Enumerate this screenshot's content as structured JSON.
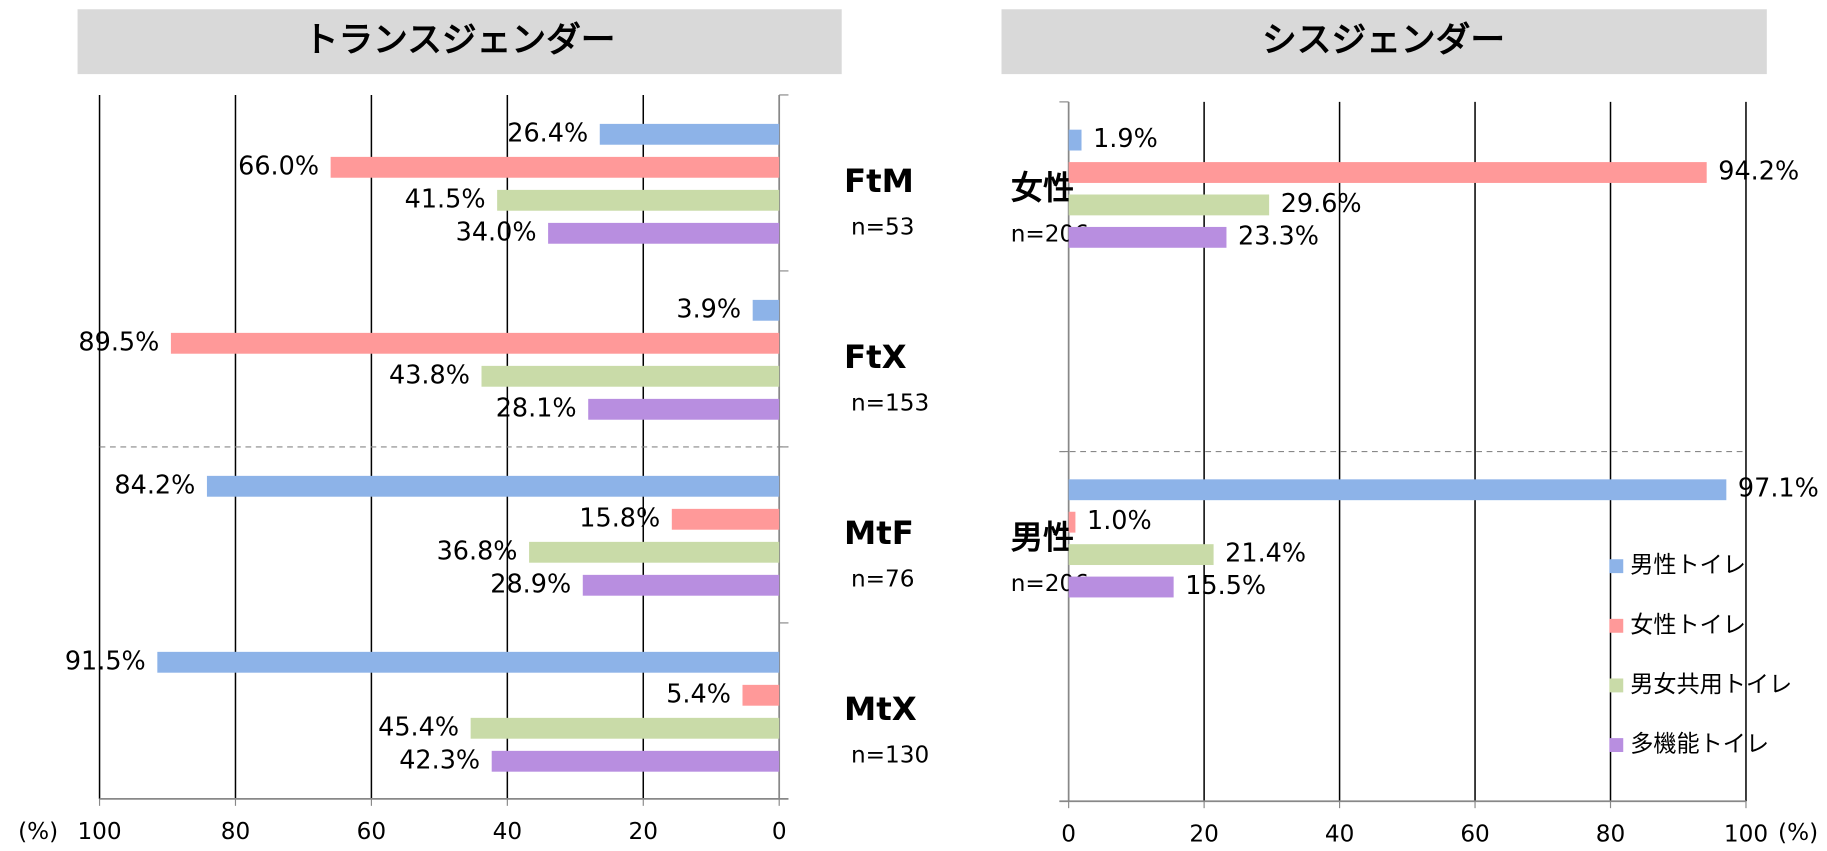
{
  "chart_data": [
    {
      "type": "bar",
      "orientation": "horizontal",
      "title": "トランスジェンダー",
      "categories": [
        "FtM",
        "FtX",
        "MtF",
        "MtX"
      ],
      "category_notes": [
        "n=53",
        "n=153",
        "n=76",
        "n=130"
      ],
      "series": [
        {
          "name": "男性トイレ",
          "color": "#8db3e8",
          "values": [
            26.4,
            3.9,
            84.2,
            91.5
          ],
          "value_labels": [
            "26.4%",
            "3.9%",
            "84.2%",
            "91.5%"
          ]
        },
        {
          "name": "女性トイレ",
          "color": "#ff9999",
          "values": [
            66.0,
            89.5,
            15.8,
            5.4
          ],
          "value_labels": [
            "66.0%",
            "89.5%",
            "15.8%",
            "5.4%"
          ]
        },
        {
          "name": "男女共用トイレ",
          "color": "#c9dba8",
          "values": [
            41.5,
            43.8,
            36.8,
            45.4
          ],
          "value_labels": [
            "41.5%",
            "43.8%",
            "36.8%",
            "45.4%"
          ]
        },
        {
          "name": "多機能トイレ",
          "color": "#b88ee0",
          "values": [
            34.0,
            28.1,
            28.9,
            42.3
          ],
          "value_labels": [
            "34.0%",
            "28.1%",
            "28.9%",
            "42.3%"
          ]
        }
      ],
      "xlabel": "(%)",
      "xlim": [
        100,
        0
      ],
      "xticks": [
        100,
        80,
        60,
        40,
        20,
        0
      ],
      "grid": true
    },
    {
      "type": "bar",
      "orientation": "horizontal",
      "title": "シスジェンダー",
      "categories": [
        "女性",
        "男性"
      ],
      "category_notes": [
        "n=206",
        "n=206"
      ],
      "series": [
        {
          "name": "男性トイレ",
          "color": "#8db3e8",
          "values": [
            1.9,
            97.1
          ],
          "value_labels": [
            "1.9%",
            "97.1%"
          ]
        },
        {
          "name": "女性トイレ",
          "color": "#ff9999",
          "values": [
            94.2,
            1.0
          ],
          "value_labels": [
            "94.2%",
            "1.0%"
          ]
        },
        {
          "name": "男女共用トイレ",
          "color": "#c9dba8",
          "values": [
            29.6,
            21.4
          ],
          "value_labels": [
            "29.6%",
            "21.4%"
          ]
        },
        {
          "name": "多機能トイレ",
          "color": "#b88ee0",
          "values": [
            23.3,
            15.5
          ],
          "value_labels": [
            "23.3%",
            "15.5%"
          ]
        }
      ],
      "xlabel": "(%)",
      "xlim": [
        0,
        100
      ],
      "xticks": [
        0,
        20,
        40,
        60,
        80,
        100
      ],
      "grid": true,
      "legend": "right"
    }
  ]
}
